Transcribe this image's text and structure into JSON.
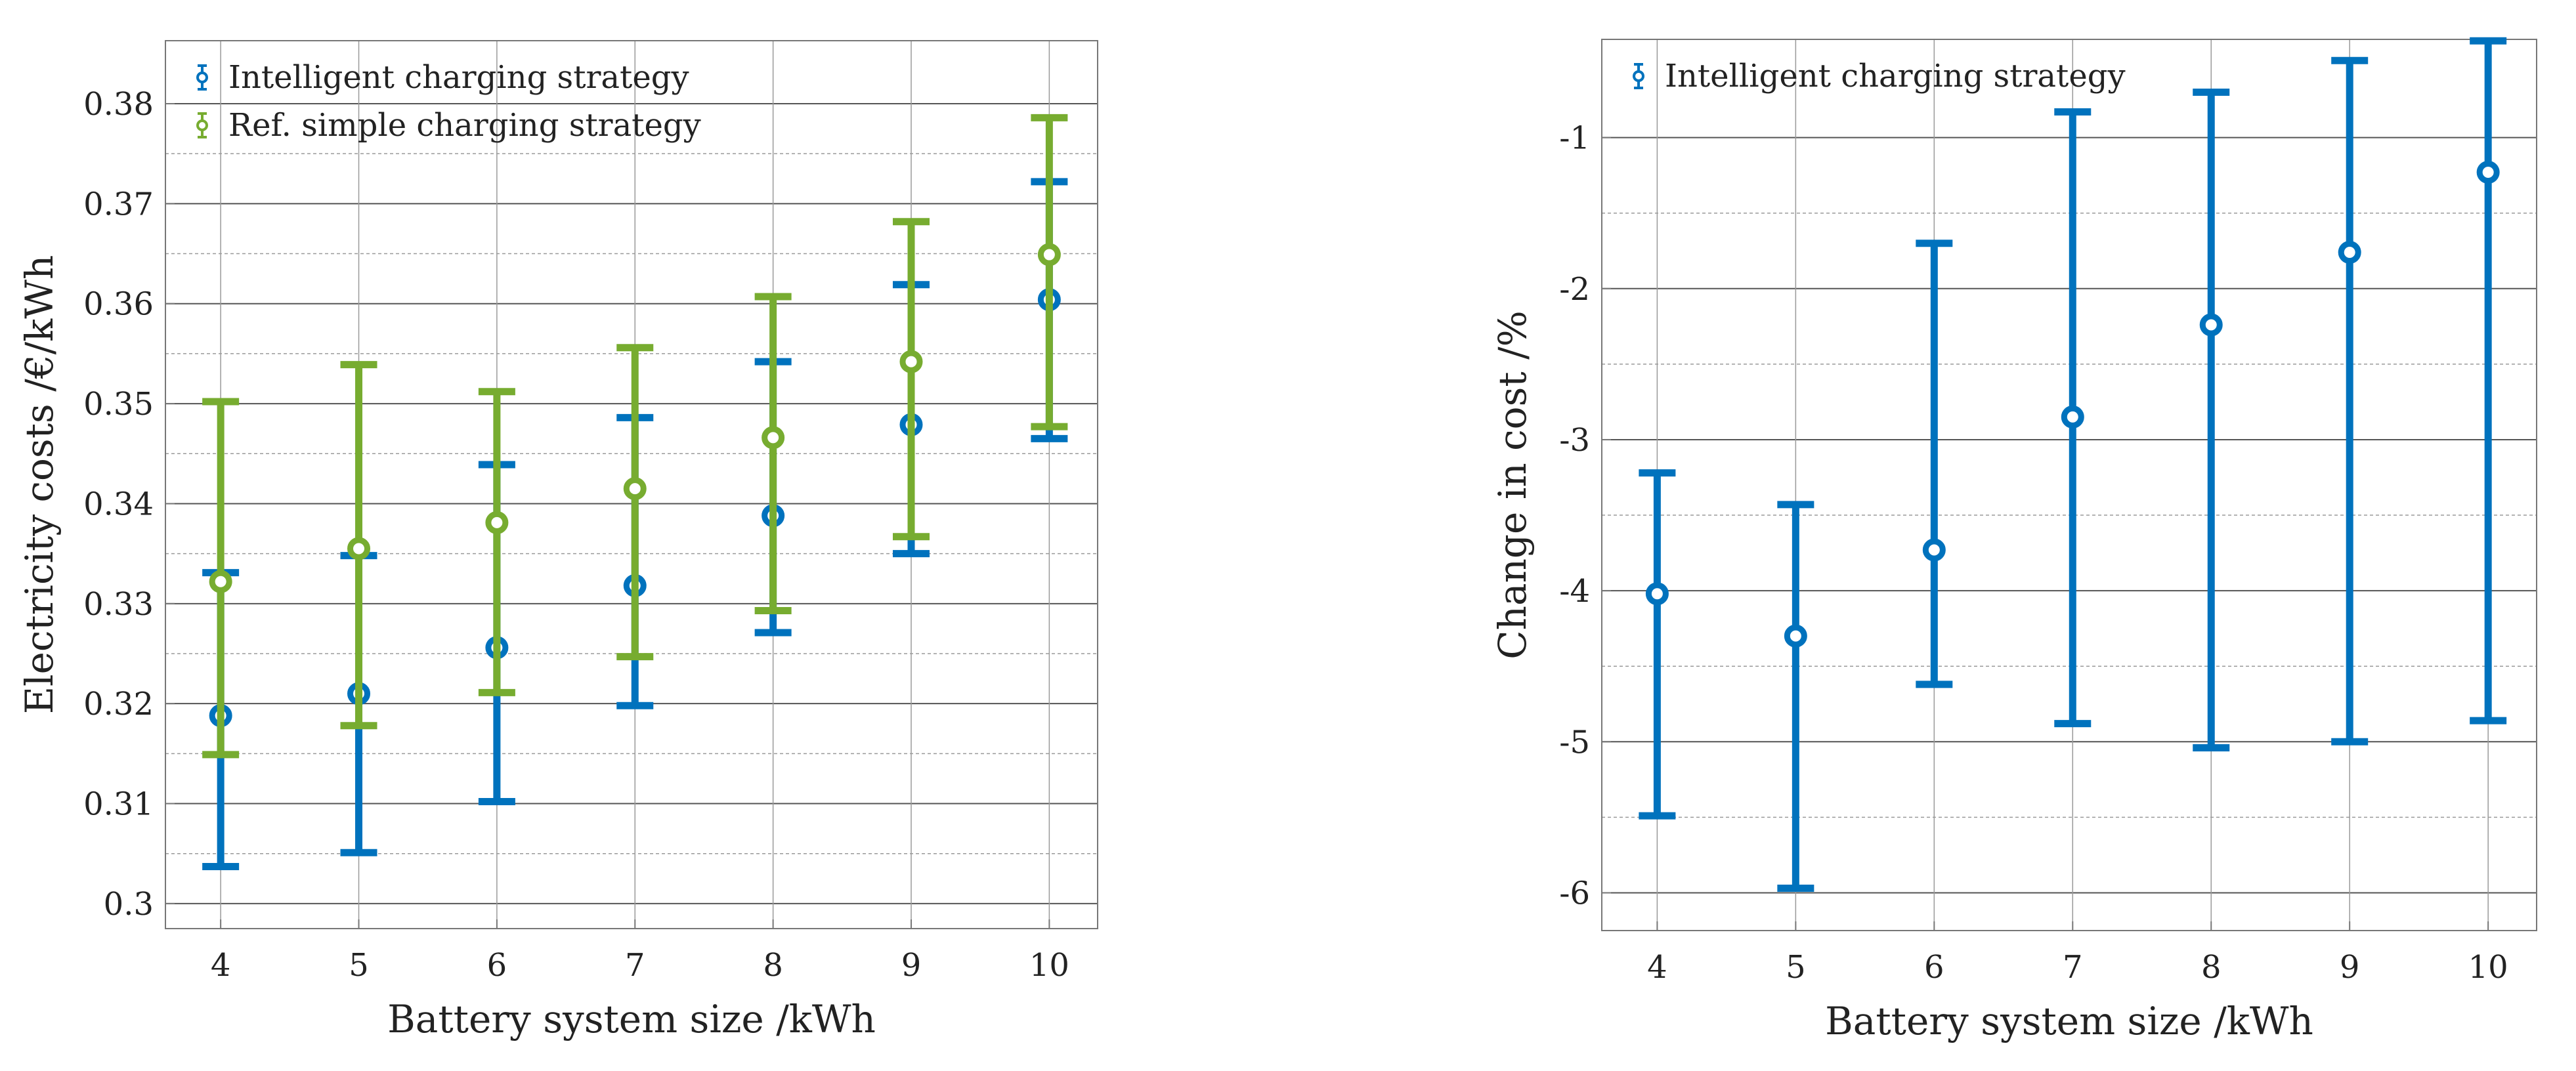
{
  "colors": {
    "intelligent": "#0072BD",
    "reference": "#77AC30",
    "grid_major": "#555555",
    "grid_minor": "#9a9a9a",
    "axis": "#777777",
    "text": "#222222"
  },
  "chart_data": [
    {
      "type": "errorbar",
      "title": "",
      "xlabel": "Battery system size /kWh",
      "ylabel": "Electricity costs /€/kWh",
      "xlim": [
        3.6,
        10.35
      ],
      "ylim": [
        0.2975,
        0.3863
      ],
      "x_ticks": [
        4,
        5,
        6,
        7,
        8,
        9,
        10
      ],
      "x_tick_labels": [
        "4",
        "5",
        "6",
        "7",
        "8",
        "9",
        "10"
      ],
      "y_ticks": [
        0.3,
        0.31,
        0.32,
        0.33,
        0.34,
        0.35,
        0.36,
        0.37,
        0.38
      ],
      "y_tick_labels": [
        "0.3",
        "0.31",
        "0.32",
        "0.33",
        "0.34",
        "0.35",
        "0.36",
        "0.37",
        "0.38"
      ],
      "grid": true,
      "legend_position": "top-left",
      "series": [
        {
          "name": "Intelligent charging strategy",
          "color_key": "intelligent",
          "x_offset": 0,
          "x": [
            4,
            5,
            6,
            7,
            8,
            9,
            10
          ],
          "values": [
            0.3188,
            0.321,
            0.3256,
            0.3318,
            0.3388,
            0.3479,
            0.3604
          ],
          "lower": [
            0.3037,
            0.3051,
            0.3102,
            0.3198,
            0.3271,
            0.335,
            0.3465
          ],
          "upper": [
            0.3331,
            0.3348,
            0.3439,
            0.3486,
            0.3542,
            0.3619,
            0.3722
          ]
        },
        {
          "name": "Ref. simple charging strategy",
          "color_key": "reference",
          "x_offset": 0,
          "x": [
            4,
            5,
            6,
            7,
            8,
            9,
            10
          ],
          "values": [
            0.3322,
            0.3355,
            0.3381,
            0.3415,
            0.3466,
            0.3542,
            0.3649
          ],
          "lower": [
            0.3149,
            0.3178,
            0.3211,
            0.3247,
            0.3293,
            0.3367,
            0.3477
          ],
          "upper": [
            0.3502,
            0.3539,
            0.3512,
            0.3556,
            0.3607,
            0.3682,
            0.3786
          ]
        }
      ]
    },
    {
      "type": "errorbar",
      "title": "",
      "xlabel": "Battery system size /kWh",
      "ylabel": "Change in cost /%",
      "xlim": [
        3.6,
        10.35
      ],
      "ylim": [
        -6.25,
        -0.35
      ],
      "x_ticks": [
        4,
        5,
        6,
        7,
        8,
        9,
        10
      ],
      "x_tick_labels": [
        "4",
        "5",
        "6",
        "7",
        "8",
        "9",
        "10"
      ],
      "y_ticks": [
        -6,
        -5,
        -4,
        -3,
        -2,
        -1
      ],
      "y_tick_labels": [
        "-6",
        "-5",
        "-4",
        "-3",
        "-2",
        "-1"
      ],
      "grid": true,
      "legend_position": "top-left",
      "series": [
        {
          "name": "Intelligent charging strategy",
          "color_key": "intelligent",
          "x_offset": 0,
          "x": [
            4,
            5,
            6,
            7,
            8,
            9,
            10
          ],
          "values": [
            -4.02,
            -4.3,
            -3.73,
            -2.85,
            -2.24,
            -1.76,
            -1.23
          ],
          "lower": [
            -5.49,
            -5.97,
            -4.62,
            -4.88,
            -5.04,
            -5.0,
            -4.86
          ],
          "upper": [
            -3.22,
            -3.43,
            -1.7,
            -0.83,
            -0.7,
            -0.49,
            -0.36
          ]
        }
      ]
    }
  ]
}
